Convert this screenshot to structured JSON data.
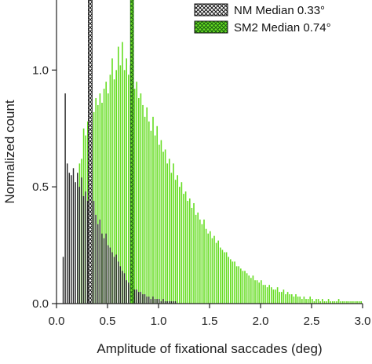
{
  "chart_data": {
    "type": "bar",
    "title": "",
    "xlabel": "Amplitude of fixational saccades (deg)",
    "ylabel": "Normalized count",
    "xlim": [
      0,
      3.0
    ],
    "ylim": [
      0,
      1.3
    ],
    "xticks": [
      "0.0",
      "0.5",
      "1.0",
      "1.5",
      "2.0",
      "2.5",
      "3.0"
    ],
    "yticks": [
      "0.0",
      "0.5",
      "1.0"
    ],
    "bin_width": 0.02,
    "series": [
      {
        "name": "SM2",
        "color": "#66dd22",
        "x_start": 0.2,
        "values": [
          0.5,
          0.6,
          0.62,
          0.75,
          0.72,
          0.78,
          0.8,
          0.76,
          0.82,
          0.88,
          0.85,
          0.9,
          0.86,
          0.92,
          0.95,
          0.9,
          0.98,
          1.05,
          0.96,
          1.0,
          1.1,
          1.02,
          1.12,
          1.0,
          1.05,
          0.98,
          1.02,
          0.96,
          0.92,
          0.95,
          0.88,
          0.9,
          0.85,
          0.8,
          0.84,
          0.78,
          0.74,
          0.8,
          0.72,
          0.76,
          0.68,
          0.7,
          0.65,
          0.66,
          0.6,
          0.62,
          0.56,
          0.6,
          0.53,
          0.55,
          0.5,
          0.52,
          0.47,
          0.48,
          0.44,
          0.45,
          0.41,
          0.43,
          0.38,
          0.39,
          0.36,
          0.34,
          0.36,
          0.32,
          0.3,
          0.31,
          0.28,
          0.29,
          0.26,
          0.27,
          0.24,
          0.23,
          0.22,
          0.22,
          0.2,
          0.19,
          0.18,
          0.18,
          0.16,
          0.16,
          0.15,
          0.14,
          0.14,
          0.13,
          0.12,
          0.11,
          0.12,
          0.1,
          0.1,
          0.09,
          0.1,
          0.08,
          0.08,
          0.07,
          0.08,
          0.07,
          0.06,
          0.06,
          0.07,
          0.05,
          0.05,
          0.06,
          0.04,
          0.05,
          0.04,
          0.04,
          0.03,
          0.04,
          0.03,
          0.03,
          0.02,
          0.03,
          0.02,
          0.02,
          0.03,
          0.02,
          0.01,
          0.02,
          0.02,
          0.01,
          0.02,
          0.01,
          0.01,
          0.02,
          0.01,
          0.01,
          0.01,
          0.01,
          0.02,
          0.01,
          0.01,
          0.01,
          0.01,
          0.01,
          0.01,
          0.01,
          0.01,
          0.01,
          0.01,
          0.01
        ]
      },
      {
        "name": "NM",
        "color": "#2a2a2a",
        "x_start": 0.06,
        "values": [
          0.2,
          0.9,
          0.6,
          0.56,
          0.55,
          0.58,
          0.52,
          0.56,
          0.5,
          0.54,
          0.46,
          0.48,
          0.44,
          0.5,
          0.42,
          0.44,
          0.38,
          0.34,
          0.36,
          0.3,
          0.28,
          0.3,
          0.25,
          0.24,
          0.22,
          0.2,
          0.21,
          0.18,
          0.16,
          0.14,
          0.13,
          0.1,
          0.09,
          0.08,
          0.07,
          0.06,
          0.06,
          0.05,
          0.05,
          0.04,
          0.04,
          0.03,
          0.03,
          0.02,
          0.03,
          0.02,
          0.02,
          0.02,
          0.01,
          0.02,
          0.01,
          0.01,
          0.01,
          0.01,
          0.01,
          0.01
        ]
      }
    ],
    "median_lines": [
      {
        "name": "NM",
        "x": 0.33
      },
      {
        "name": "SM2",
        "x": 0.74
      }
    ],
    "legend": {
      "position": "top-right",
      "entries": [
        {
          "label": "NM Median 0.33°",
          "series": "NM"
        },
        {
          "label": "SM2 Median 0.74°",
          "series": "SM2"
        }
      ]
    }
  }
}
